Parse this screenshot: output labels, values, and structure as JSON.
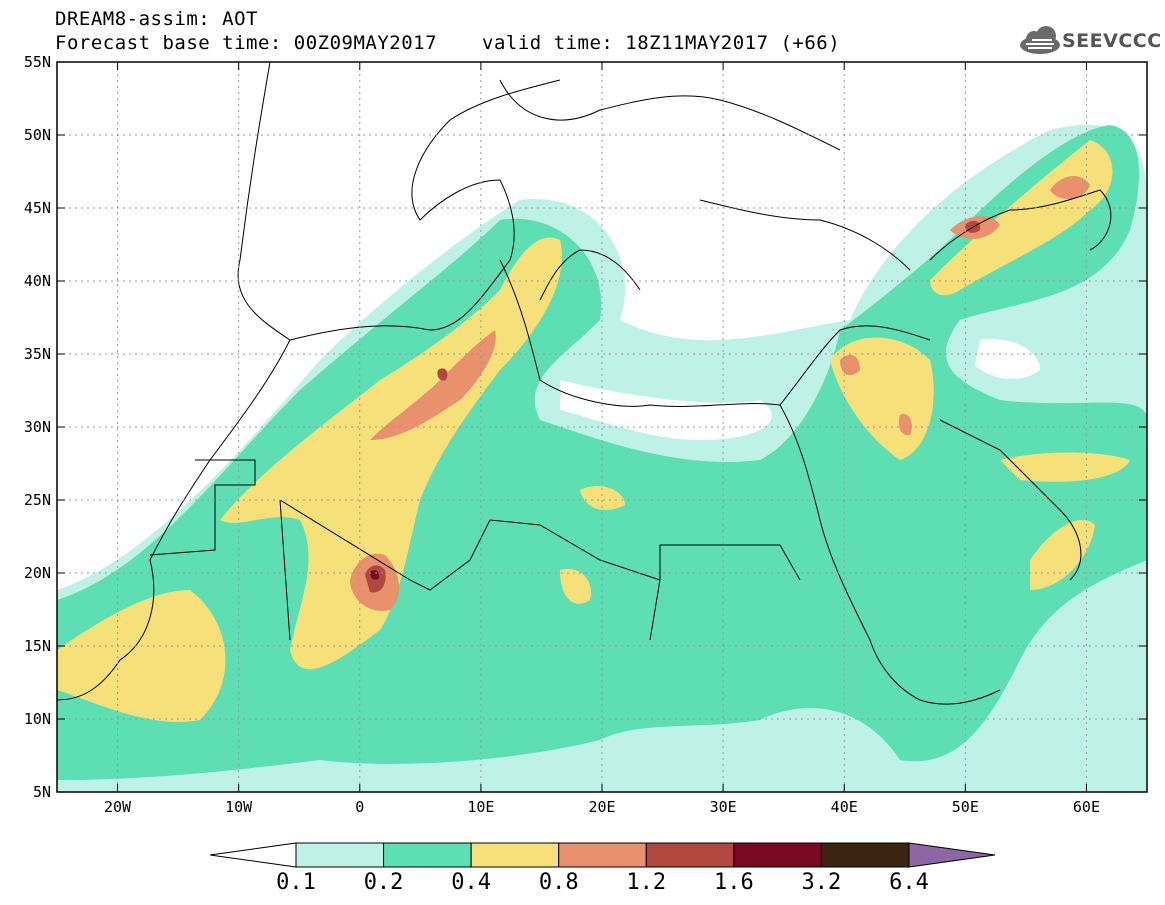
{
  "title": {
    "line1": "DREAM8-assim: AOT",
    "line2": "Forecast base time: 00Z09MAY2017",
    "line3": "valid time: 18Z11MAY2017 (+66)"
  },
  "logo": {
    "text": "SEEVCCC",
    "icon": "cloud-icon"
  },
  "map": {
    "lat_ticks": [
      "55N",
      "50N",
      "45N",
      "40N",
      "35N",
      "30N",
      "25N",
      "20N",
      "15N",
      "10N",
      "5N"
    ],
    "lon_ticks": [
      "20W",
      "10W",
      "0",
      "10E",
      "20E",
      "30E",
      "40E",
      "50E",
      "60E"
    ],
    "extent": {
      "lon_min": -25,
      "lon_max": 65,
      "lat_min": 5,
      "lat_max": 55
    },
    "variable": "AOT"
  },
  "colorbar": {
    "levels": [
      "0.1",
      "0.2",
      "0.4",
      "0.8",
      "1.2",
      "1.6",
      "3.2",
      "6.4"
    ],
    "colors": [
      "#ffffff",
      "#bff2e7",
      "#5ddeb3",
      "#f5e07a",
      "#e8916c",
      "#b1483f",
      "#7a0a22",
      "#3c2412",
      "#8d66a8"
    ]
  }
}
